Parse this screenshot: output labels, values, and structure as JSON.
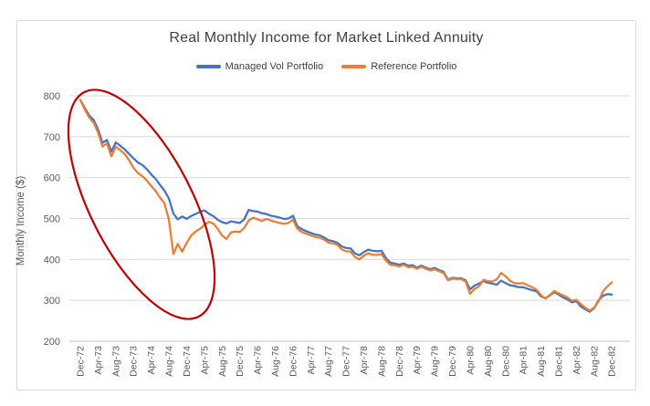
{
  "window": {
    "background": "#FFFFFF"
  },
  "colors": {
    "gridline": "#D9D9D9",
    "axis_line": "#BFBFBF",
    "axis_text": "#595959",
    "title_text": "#404040",
    "frame_border": "#D9D9D9",
    "series_blue": "#4472C4",
    "series_orange": "#ED7D31",
    "annotation_red": "#C00000"
  },
  "legend": {
    "items": [
      {
        "label": "Managed Vol Portfolio",
        "color": "#4472C4"
      },
      {
        "label": "Reference Portfolio",
        "color": "#ED7D31"
      }
    ]
  },
  "chart_data": {
    "type": "line",
    "title": "Real Monthly Income for Market Linked Annuity",
    "xlabel": "",
    "ylabel": "Monthly Income ($)",
    "ylim": [
      200,
      800
    ],
    "yticks": [
      200,
      300,
      400,
      500,
      600,
      700,
      800
    ],
    "grid": "horizontal",
    "legend_position": "top",
    "x_unit": "month",
    "x_start": "Dec-72",
    "x_end": "Dec-82",
    "x_points": 121,
    "x_ticklabels": [
      "Dec-72",
      "Apr-73",
      "Aug-73",
      "Dec-73",
      "Apr-74",
      "Aug-74",
      "Dec-74",
      "Apr-75",
      "Aug-75",
      "Dec-75",
      "Apr-76",
      "Aug-76",
      "Dec-76",
      "Apr-77",
      "Aug-77",
      "Dec-77",
      "Apr-78",
      "Aug-78",
      "Dec-78",
      "Apr-79",
      "Aug-79",
      "Dec-79",
      "Apr-80",
      "Aug-80",
      "Dec-80",
      "Apr-81",
      "Aug-81",
      "Dec-81",
      "Apr-82",
      "Aug-82",
      "Dec-82"
    ],
    "x_tick_interval_months": 4,
    "series": [
      {
        "name": "Managed Vol Portfolio",
        "color": "#4472C4",
        "values": [
          790,
          770,
          752,
          741,
          718,
          685,
          692,
          664,
          686,
          678,
          669,
          658,
          647,
          637,
          631,
          621,
          608,
          597,
          582,
          568,
          549,
          512,
          498,
          505,
          499,
          506,
          511,
          516,
          520,
          512,
          506,
          497,
          491,
          488,
          493,
          491,
          489,
          498,
          521,
          518,
          517,
          513,
          511,
          507,
          505,
          502,
          499,
          500,
          507,
          481,
          474,
          469,
          465,
          461,
          459,
          454,
          447,
          445,
          441,
          432,
          428,
          427,
          415,
          410,
          418,
          424,
          421,
          420,
          421,
          403,
          392,
          390,
          387,
          390,
          385,
          386,
          380,
          385,
          380,
          376,
          379,
          374,
          370,
          351,
          355,
          354,
          354,
          349,
          327,
          336,
          341,
          347,
          343,
          341,
          338,
          348,
          342,
          337,
          335,
          332,
          332,
          328,
          325,
          322,
          310,
          305,
          312,
          320,
          314,
          307,
          302,
          295,
          298,
          285,
          278,
          272,
          281,
          300,
          311,
          315,
          314
        ]
      },
      {
        "name": "Reference Portfolio",
        "color": "#ED7D31",
        "values": [
          790,
          766,
          747,
          734,
          710,
          676,
          684,
          652,
          676,
          667,
          658,
          643,
          624,
          611,
          604,
          593,
          580,
          567,
          551,
          537,
          497,
          413,
          438,
          419,
          440,
          458,
          468,
          475,
          484,
          492,
          488,
          475,
          458,
          450,
          466,
          468,
          467,
          477,
          495,
          502,
          498,
          494,
          499,
          495,
          492,
          489,
          487,
          489,
          497,
          475,
          467,
          463,
          459,
          455,
          453,
          449,
          441,
          439,
          436,
          425,
          420,
          419,
          406,
          400,
          409,
          415,
          411,
          411,
          413,
          397,
          387,
          386,
          383,
          387,
          381,
          382,
          377,
          382,
          377,
          373,
          376,
          371,
          367,
          349,
          353,
          352,
          352,
          346,
          316,
          328,
          334,
          350,
          347,
          346,
          351,
          367,
          359,
          348,
          342,
          341,
          342,
          337,
          332,
          326,
          313,
          304,
          313,
          323,
          317,
          312,
          307,
          299,
          301,
          291,
          282,
          275,
          282,
          297,
          322,
          334,
          344
        ]
      }
    ],
    "annotation": {
      "shape": "ellipse",
      "color": "#C00000"
    }
  }
}
